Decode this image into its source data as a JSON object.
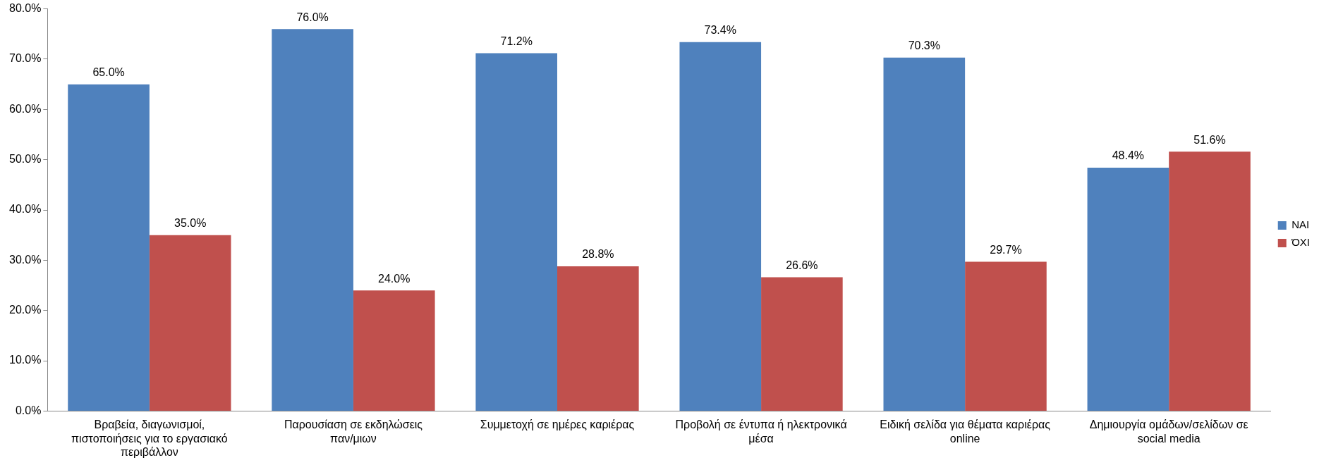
{
  "chart_data": {
    "type": "bar",
    "categories": [
      "Βραβεία, διαγωνισμοί, πιστοποιήσεις για το εργασιακό περιβάλλον",
      "Παρουσίαση σε εκδηλώσεις παν/μιων",
      "Συμμετοχή σε ημέρες καριέρας",
      "Προβολή σε έντυπα ή ηλεκτρονικά μέσα",
      "Ειδική σελίδα για θέματα καριέρας online",
      "Δημιουργία ομάδων/σελίδων σε social media"
    ],
    "series": [
      {
        "name": "ΝΑΙ",
        "color": "#4f81bd",
        "values": [
          65.0,
          76.0,
          71.2,
          73.4,
          70.3,
          48.4
        ],
        "value_labels": [
          "65.0%",
          "76.0%",
          "71.2%",
          "73.4%",
          "70.3%",
          "48.4%"
        ]
      },
      {
        "name": "ΌΧΙ",
        "color": "#c0504d",
        "values": [
          35.0,
          24.0,
          28.8,
          26.6,
          29.7,
          51.6
        ],
        "value_labels": [
          "35.0%",
          "24.0%",
          "28.8%",
          "26.6%",
          "29.7%",
          "51.6%"
        ]
      }
    ],
    "ylim": [
      0,
      80
    ],
    "yticks": [
      {
        "value": 0,
        "label": "0.0%"
      },
      {
        "value": 10,
        "label": "10.0%"
      },
      {
        "value": 20,
        "label": "20.0%"
      },
      {
        "value": 30,
        "label": "30.0%"
      },
      {
        "value": 40,
        "label": "40.0%"
      },
      {
        "value": 50,
        "label": "50.0%"
      },
      {
        "value": 60,
        "label": "60.0%"
      },
      {
        "value": 70,
        "label": "70.0%"
      },
      {
        "value": 80,
        "label": "80.0%"
      }
    ],
    "grid": false,
    "legend": "right"
  }
}
